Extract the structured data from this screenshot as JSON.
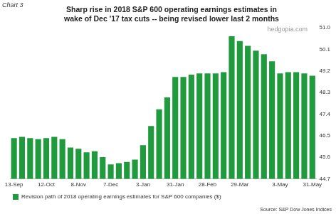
{
  "chart_data": {
    "type": "bar",
    "chart_label": "Chart 3",
    "title": [
      "Sharp rise in 2018 S&P 600 operating earnings estimates in",
      "wake of Dec '17 tax cuts -- being revised lower last 2 months"
    ],
    "watermark": "hedgopia.com",
    "source": "Source: S&P Dow Jones Indices",
    "categories": [
      "13-Sep",
      null,
      null,
      null,
      "12-Oct",
      null,
      null,
      null,
      "8-Nov",
      null,
      null,
      null,
      "7-Dec",
      null,
      null,
      null,
      "3-Jan",
      null,
      null,
      null,
      "31-Jan",
      null,
      null,
      null,
      "28-Feb",
      null,
      null,
      null,
      "29-Mar",
      null,
      null,
      null,
      null,
      "3-May",
      null,
      null,
      null,
      "31-May"
    ],
    "series": [
      {
        "name": "Revision path of 2018 operating earnings estimates for S&P 600 companies ($)",
        "color": "#1f9a3c",
        "values": [
          46.4,
          46.45,
          46.4,
          46.35,
          46.4,
          46.45,
          46.35,
          46.0,
          45.95,
          45.8,
          45.85,
          45.6,
          45.3,
          45.35,
          45.4,
          45.5,
          46.1,
          46.9,
          47.6,
          48.1,
          48.95,
          48.95,
          49.05,
          49.1,
          49.1,
          49.1,
          49.15,
          50.65,
          50.45,
          50.25,
          50.05,
          49.9,
          49.6,
          49.1,
          49.15,
          49.15,
          49.1,
          49.0
        ]
      }
    ],
    "ylim": [
      44.7,
      51.0
    ],
    "yticks": [
      44.7,
      45.6,
      46.5,
      47.4,
      48.3,
      49.2,
      50.1,
      {
        "value": 51,
        "label": "51.0"
      }
    ],
    "grid": false,
    "legend": "bottom"
  }
}
